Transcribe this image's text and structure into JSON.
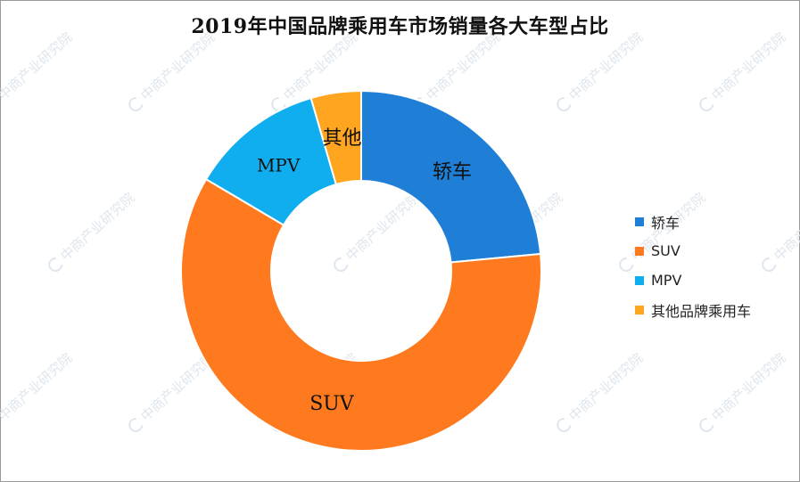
{
  "title": "2019年中国品牌乘用车市场销量各大车型占比",
  "watermark": "中商产业研究院",
  "chart_data": {
    "type": "pie",
    "title": "2019年中国品牌乘用车市场销量各大车型占比",
    "labels": [
      "轿车",
      "SUV",
      "MPV",
      "其他品牌乘用车"
    ],
    "slice_labels": [
      "轿车",
      "SUV",
      "MPV",
      "其他"
    ],
    "values": [
      23.5,
      60.0,
      12.0,
      4.5
    ],
    "colors": [
      "#1f7fd6",
      "#ff7a1f",
      "#10aeef",
      "#ffa51f"
    ],
    "legend_position": "right",
    "donut": true
  }
}
